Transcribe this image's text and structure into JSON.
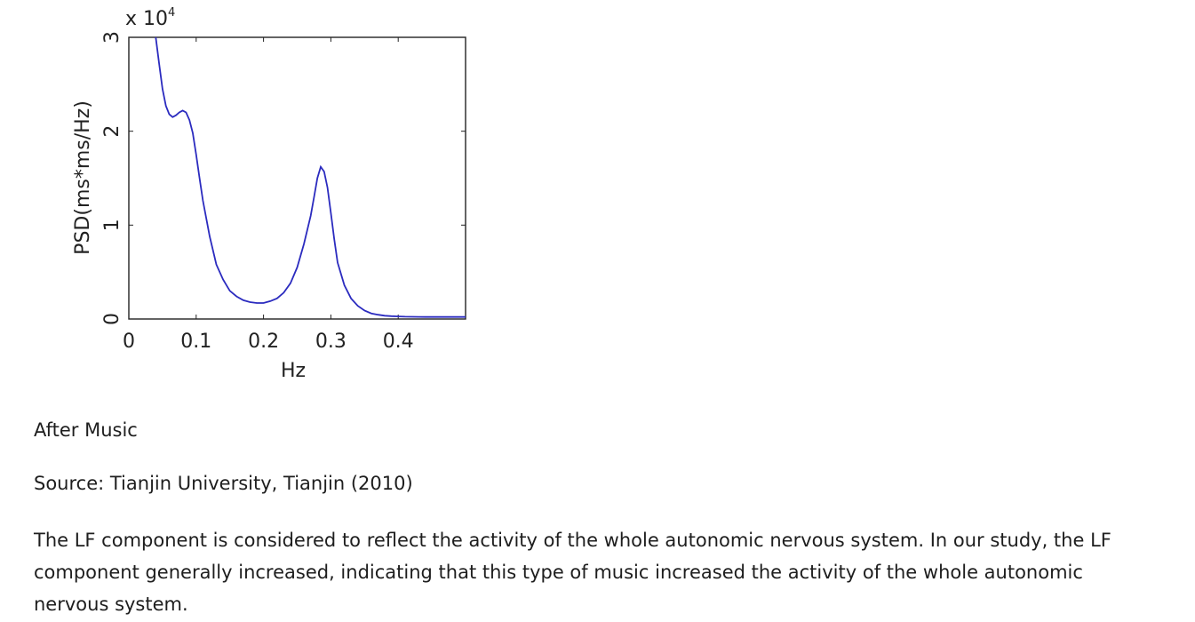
{
  "chart_data": {
    "type": "line",
    "title": "",
    "xlabel": "Hz",
    "ylabel": "PSD(ms*ms/Hz)",
    "y_multiplier_label": "x 10",
    "y_multiplier_exponent": "4",
    "xlim": [
      0,
      0.5
    ],
    "ylim": [
      0,
      3
    ],
    "x_ticks": [
      0,
      0.1,
      0.2,
      0.3,
      0.4
    ],
    "x_tick_labels": [
      "0",
      "0.1",
      "0.2",
      "0.3",
      "0.4"
    ],
    "y_ticks": [
      0,
      1,
      2,
      3
    ],
    "y_tick_labels": [
      "0",
      "1",
      "2",
      "3"
    ],
    "grid": false,
    "line_color": "#2b2bbf",
    "series": [
      {
        "x": [
          0.04,
          0.045,
          0.05,
          0.055,
          0.06,
          0.065,
          0.07,
          0.075,
          0.08,
          0.085,
          0.09,
          0.095,
          0.1,
          0.105,
          0.11,
          0.12,
          0.13,
          0.14,
          0.15,
          0.16,
          0.17,
          0.18,
          0.19,
          0.2,
          0.21,
          0.22,
          0.23,
          0.24,
          0.25,
          0.26,
          0.27,
          0.275,
          0.28,
          0.285,
          0.29,
          0.295,
          0.3,
          0.305,
          0.31,
          0.32,
          0.33,
          0.34,
          0.35,
          0.36,
          0.37,
          0.38,
          0.39,
          0.4,
          0.41,
          0.42,
          0.43,
          0.44,
          0.45,
          0.46,
          0.47,
          0.48,
          0.49,
          0.5
        ],
        "values": [
          3.0,
          2.72,
          2.45,
          2.27,
          2.18,
          2.15,
          2.17,
          2.2,
          2.22,
          2.2,
          2.12,
          1.98,
          1.75,
          1.5,
          1.26,
          0.88,
          0.58,
          0.42,
          0.3,
          0.24,
          0.2,
          0.18,
          0.17,
          0.17,
          0.19,
          0.22,
          0.28,
          0.38,
          0.55,
          0.8,
          1.1,
          1.3,
          1.5,
          1.62,
          1.57,
          1.4,
          1.13,
          0.85,
          0.6,
          0.36,
          0.22,
          0.14,
          0.09,
          0.06,
          0.045,
          0.035,
          0.03,
          0.027,
          0.025,
          0.024,
          0.023,
          0.022,
          0.022,
          0.022,
          0.022,
          0.022,
          0.022,
          0.022
        ]
      }
    ]
  },
  "captions": {
    "after": "After Music",
    "source": "Source: Tianjin University, Tianjin (2010)",
    "body": "The LF component is considered to reflect the activity of the whole autonomic nervous system. In our study, the LF component generally increased, indicating that this type of music increased the activity of the whole autonomic nervous system."
  }
}
